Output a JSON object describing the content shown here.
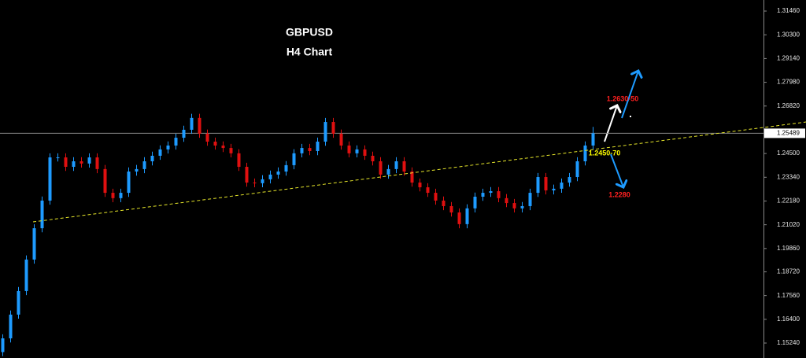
{
  "chart_data": {
    "type": "candlestick",
    "title": "GBPUSD",
    "subtitle": "H4 Chart",
    "up_color": "#1e9bff",
    "down_color": "#e01010",
    "ylim": [
      1.1451,
      1.32
    ],
    "yticks": [
      {
        "value": 1.3146,
        "label": "1.31460"
      },
      {
        "value": 1.303,
        "label": "1.30300"
      },
      {
        "value": 1.2914,
        "label": "1.29140"
      },
      {
        "value": 1.2798,
        "label": "1.27980"
      },
      {
        "value": 1.2682,
        "label": "1.26820"
      },
      {
        "value": 1.245,
        "label": "1.24500"
      },
      {
        "value": 1.2334,
        "label": "1.23340"
      },
      {
        "value": 1.2218,
        "label": "1.22180"
      },
      {
        "value": 1.2102,
        "label": "1.21020"
      },
      {
        "value": 1.1986,
        "label": "1.19860"
      },
      {
        "value": 1.1872,
        "label": "1.18720"
      },
      {
        "value": 1.1756,
        "label": "1.17560"
      },
      {
        "value": 1.164,
        "label": "1.16400"
      },
      {
        "value": 1.1524,
        "label": "1.15240"
      }
    ],
    "current_price": {
      "value": 1.25489,
      "label": "1.25489"
    },
    "trendline": [
      1.2116,
      1.2604
    ],
    "open": [
      1.148,
      1.1547,
      1.1663,
      1.1778,
      1.1932,
      1.2085,
      1.222,
      1.2431,
      1.2431,
      1.2385,
      1.2412,
      1.2401,
      1.2431,
      1.2374,
      1.2258,
      1.2232,
      1.2258,
      1.2362,
      1.2374,
      1.2412,
      1.2439,
      1.247,
      1.2489,
      1.2527,
      1.2566,
      1.2624,
      1.2547,
      1.2508,
      1.2489,
      1.2477,
      1.2451,
      1.2385,
      1.2308,
      1.2305,
      1.2324,
      1.2347,
      1.2362,
      1.2393,
      1.2451,
      1.2477,
      1.2462,
      1.2508,
      1.2604,
      1.2547,
      1.2489,
      1.2451,
      1.247,
      1.2439,
      1.2412,
      1.2347,
      1.2374,
      1.2412,
      1.2362,
      1.2308,
      1.2285,
      1.2258,
      1.222,
      1.2193,
      1.2162,
      1.2105,
      1.2182,
      1.2239,
      1.2258,
      1.2266,
      1.2232,
      1.2208,
      1.2182,
      1.2193,
      1.2258,
      1.2335,
      1.227,
      1.2278,
      1.2308,
      1.2335,
      1.2412,
      1.2489
    ],
    "high": [
      1.1567,
      1.1683,
      1.1798,
      1.1952,
      1.2105,
      1.224,
      1.2451,
      1.2451,
      1.2451,
      1.2432,
      1.2432,
      1.2451,
      1.2451,
      1.2394,
      1.2278,
      1.2278,
      1.2382,
      1.2394,
      1.2432,
      1.2459,
      1.249,
      1.2509,
      1.2547,
      1.2586,
      1.2644,
      1.2644,
      1.2567,
      1.2528,
      1.2509,
      1.2497,
      1.2471,
      1.2405,
      1.2328,
      1.2344,
      1.2367,
      1.2382,
      1.2413,
      1.2471,
      1.2497,
      1.2497,
      1.2528,
      1.2624,
      1.2624,
      1.2567,
      1.2509,
      1.249,
      1.249,
      1.2459,
      1.2432,
      1.2394,
      1.2432,
      1.2432,
      1.2382,
      1.2328,
      1.2305,
      1.2278,
      1.224,
      1.2213,
      1.2182,
      1.2202,
      1.2259,
      1.2278,
      1.2286,
      1.2286,
      1.2252,
      1.2228,
      1.2213,
      1.2278,
      1.2355,
      1.2355,
      1.2298,
      1.2328,
      1.2355,
      1.2432,
      1.2509,
      1.258
    ],
    "low": [
      1.146,
      1.1527,
      1.1643,
      1.1758,
      1.1912,
      1.2065,
      1.22,
      1.2411,
      1.2365,
      1.2365,
      1.2381,
      1.2381,
      1.2354,
      1.2238,
      1.2212,
      1.2212,
      1.2238,
      1.2342,
      1.2354,
      1.2392,
      1.2419,
      1.245,
      1.2469,
      1.2507,
      1.2546,
      1.2527,
      1.2488,
      1.2469,
      1.2457,
      1.2431,
      1.2365,
      1.2288,
      1.2285,
      1.2285,
      1.2304,
      1.2327,
      1.2342,
      1.2373,
      1.2431,
      1.2442,
      1.2442,
      1.2488,
      1.2527,
      1.2469,
      1.2431,
      1.2431,
      1.2419,
      1.2392,
      1.2327,
      1.2327,
      1.2354,
      1.2342,
      1.2288,
      1.2265,
      1.2238,
      1.22,
      1.2173,
      1.2142,
      1.2085,
      1.2085,
      1.2162,
      1.2219,
      1.2238,
      1.2212,
      1.2188,
      1.2162,
      1.2162,
      1.2173,
      1.2238,
      1.225,
      1.225,
      1.2258,
      1.2288,
      1.2315,
      1.2392,
      1.2469
    ],
    "close": [
      1.1547,
      1.1663,
      1.1778,
      1.1932,
      1.2085,
      1.222,
      1.2431,
      1.2431,
      1.2385,
      1.2412,
      1.2401,
      1.2431,
      1.2374,
      1.2258,
      1.2232,
      1.2258,
      1.2362,
      1.2374,
      1.2412,
      1.2439,
      1.247,
      1.2489,
      1.2527,
      1.2566,
      1.2624,
      1.2547,
      1.2508,
      1.2489,
      1.2477,
      1.2451,
      1.2385,
      1.2308,
      1.2305,
      1.2324,
      1.2347,
      1.2362,
      1.2393,
      1.2451,
      1.2477,
      1.2462,
      1.2508,
      1.2604,
      1.2547,
      1.2489,
      1.2451,
      1.247,
      1.2439,
      1.2412,
      1.2347,
      1.2374,
      1.2412,
      1.2362,
      1.2308,
      1.2285,
      1.2258,
      1.222,
      1.2193,
      1.2162,
      1.2105,
      1.2182,
      1.2239,
      1.2258,
      1.2266,
      1.2232,
      1.2208,
      1.2182,
      1.2193,
      1.2258,
      1.2335,
      1.227,
      1.2278,
      1.2308,
      1.2335,
      1.2412,
      1.2489,
      1.2549
    ],
    "annotations": [
      {
        "text": "1.2630-50",
        "color": "#ff2020"
      },
      {
        "text": "1.2450-70",
        "color": "#ffff00"
      },
      {
        "text": "1.2280",
        "color": "#ff2020"
      }
    ]
  }
}
